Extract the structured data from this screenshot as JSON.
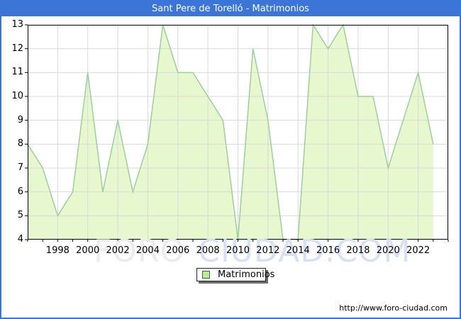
{
  "window": {
    "title": "Sant Pere de Torelló - Matrimonios"
  },
  "chart_data": {
    "type": "area",
    "title": "Sant Pere de Torelló - Matrimonios",
    "series_name": "Matrimonios",
    "x": [
      1996,
      1997,
      1998,
      1999,
      2000,
      2001,
      2002,
      2003,
      2004,
      2005,
      2006,
      2007,
      2008,
      2009,
      2010,
      2011,
      2012,
      2013,
      2014,
      2015,
      2016,
      2017,
      2018,
      2019,
      2020,
      2021,
      2022,
      2023
    ],
    "values": [
      8,
      7,
      5,
      6,
      11,
      6,
      9,
      6,
      8,
      13,
      11,
      11,
      10,
      9,
      4,
      12,
      9,
      4,
      4,
      13,
      12,
      13,
      10,
      10,
      7,
      9,
      11,
      8
    ],
    "xlim": [
      1996,
      2024
    ],
    "ylim": [
      4,
      13
    ],
    "y_ticks": [
      4,
      5,
      6,
      7,
      8,
      9,
      10,
      11,
      12,
      13
    ],
    "x_tick_labels": [
      1998,
      2000,
      2002,
      2004,
      2006,
      2008,
      2010,
      2012,
      2014,
      2016,
      2018,
      2020,
      2022
    ],
    "grid": true,
    "legend_position": "bottom-center",
    "colors": {
      "fill": "#e7f8cf",
      "line": "#9ccf9c",
      "grid": "#d9d9d9",
      "plot_border": "#000000",
      "titlebar": "#3a75d7",
      "legend_swatch": "#bfec92"
    }
  },
  "legend": {
    "label": "Matrimonios"
  },
  "watermark": {
    "part1": "FORO",
    "part2": "CIUDAD.COM"
  },
  "footer": {
    "url": "http://www.foro-ciudad.com"
  }
}
